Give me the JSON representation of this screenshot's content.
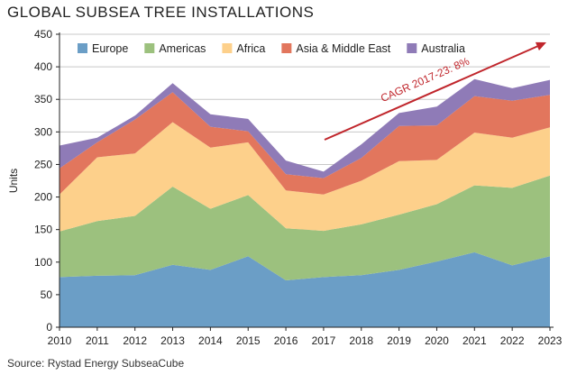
{
  "chart_data": {
    "type": "area",
    "stacked": true,
    "title": "GLOBAL SUBSEA TREE INSTALLATIONS",
    "xlabel": "",
    "ylabel": "Units",
    "source": "Source: Rystad Energy SubseaCube",
    "annotation": "CAGR 2017-23: 8%",
    "x": [
      "2010",
      "2011",
      "2012",
      "2013",
      "2014",
      "2015",
      "2016",
      "2017",
      "2018",
      "2019",
      "2020",
      "2021",
      "2022",
      "2023"
    ],
    "ylim": [
      0,
      450
    ],
    "yticks": [
      0,
      50,
      100,
      150,
      200,
      250,
      300,
      350,
      400,
      450
    ],
    "grid": true,
    "legend_position": "top",
    "series": [
      {
        "name": "Europe",
        "color": "#6b9ec6",
        "values": [
          77,
          79,
          80,
          96,
          88,
          109,
          72,
          77,
          80,
          88,
          101,
          115,
          95,
          109
        ]
      },
      {
        "name": "Americas",
        "color": "#9cc17e",
        "values": [
          70,
          84,
          91,
          120,
          94,
          94,
          80,
          71,
          78,
          85,
          88,
          103,
          119,
          124
        ]
      },
      {
        "name": "Africa",
        "color": "#fdd08b",
        "values": [
          57,
          98,
          96,
          99,
          94,
          81,
          58,
          56,
          67,
          82,
          68,
          81,
          77,
          74
        ]
      },
      {
        "name": "Asia & Middle East",
        "color": "#e2765d",
        "values": [
          40,
          23,
          52,
          46,
          32,
          17,
          25,
          25,
          35,
          54,
          53,
          56,
          57,
          50
        ]
      },
      {
        "name": "Australia",
        "color": "#8f7bb7",
        "values": [
          35,
          7,
          6,
          14,
          19,
          19,
          21,
          10,
          21,
          20,
          29,
          26,
          19,
          23
        ]
      }
    ],
    "colors": {
      "axis": "#222222",
      "grid": "#c8c8c8",
      "annotation": "#c0262c"
    }
  }
}
